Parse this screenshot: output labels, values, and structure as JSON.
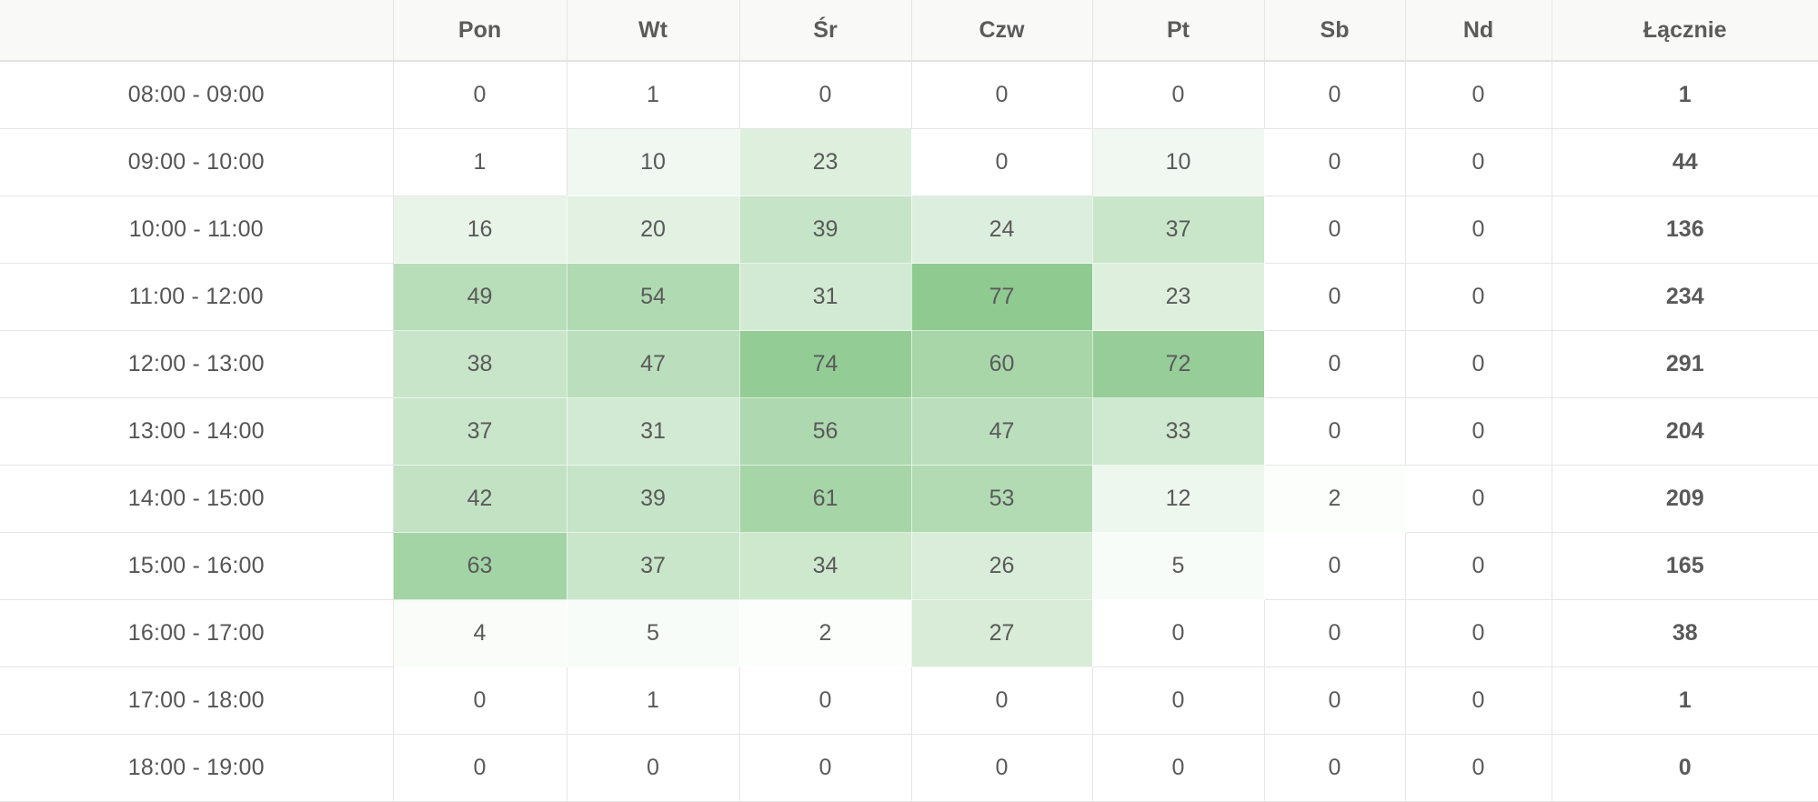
{
  "table": {
    "columns": [
      "",
      "Pon",
      "Wt",
      "Śr",
      "Czw",
      "Pt",
      "Sb",
      "Nd",
      "Łącznie"
    ],
    "rows": [
      {
        "time": "08:00 - 09:00",
        "values": [
          0,
          1,
          0,
          0,
          0,
          0,
          0
        ],
        "total": 1
      },
      {
        "time": "09:00 - 10:00",
        "values": [
          1,
          10,
          23,
          0,
          10,
          0,
          0
        ],
        "total": 44
      },
      {
        "time": "10:00 - 11:00",
        "values": [
          16,
          20,
          39,
          24,
          37,
          0,
          0
        ],
        "total": 136
      },
      {
        "time": "11:00 - 12:00",
        "values": [
          49,
          54,
          31,
          77,
          23,
          0,
          0
        ],
        "total": 234
      },
      {
        "time": "12:00 - 13:00",
        "values": [
          38,
          47,
          74,
          60,
          72,
          0,
          0
        ],
        "total": 291
      },
      {
        "time": "13:00 - 14:00",
        "values": [
          37,
          31,
          56,
          47,
          33,
          0,
          0
        ],
        "total": 204
      },
      {
        "time": "14:00 - 15:00",
        "values": [
          42,
          39,
          61,
          53,
          12,
          2,
          0
        ],
        "total": 209
      },
      {
        "time": "15:00 - 16:00",
        "values": [
          63,
          37,
          34,
          26,
          5,
          0,
          0
        ],
        "total": 165
      },
      {
        "time": "16:00 - 17:00",
        "values": [
          4,
          5,
          2,
          27,
          0,
          0,
          0
        ],
        "total": 38
      },
      {
        "time": "17:00 - 18:00",
        "values": [
          0,
          1,
          0,
          0,
          0,
          0,
          0
        ],
        "total": 1
      },
      {
        "time": "18:00 - 19:00",
        "values": [
          0,
          0,
          0,
          0,
          0,
          0,
          0
        ],
        "total": 0
      }
    ]
  },
  "heatmap": {
    "base_color": "#ffffff",
    "max_color": "#8fca91",
    "max_value": 77
  }
}
